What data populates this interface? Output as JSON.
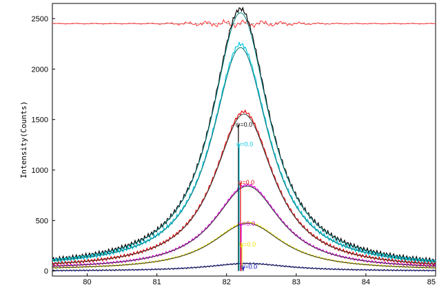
{
  "chart_data": {
    "type": "line",
    "title": "",
    "xlabel": "",
    "ylabel": "Intensity(Counts)",
    "xlim": [
      79.5,
      85
    ],
    "ylim": [
      -50,
      2650
    ],
    "x_ticks": [
      80,
      81,
      82,
      83,
      84,
      85
    ],
    "y_ticks": [
      0,
      500,
      1000,
      1500,
      2000,
      2500
    ],
    "grid": false,
    "residual": {
      "baseline": 2450,
      "color": "#ff3030",
      "dash_color": "#a0a0a0"
    },
    "series": [
      {
        "center": 82.2,
        "peak": 2600,
        "hwhm": 0.5,
        "background": 30,
        "color": "#000000",
        "fit_color": "#007f7f",
        "psi_label": "ψ=0.0",
        "marker_x": 82.17
      },
      {
        "center": 82.2,
        "peak": 2250,
        "hwhm": 0.5,
        "background": 30,
        "color": "#00c8e0",
        "fit_color": "#007070",
        "psi_label": "ψ=0.0",
        "marker_x": 82.18
      },
      {
        "center": 82.25,
        "peak": 1580,
        "hwhm": 0.52,
        "background": 20,
        "color": "#e00000",
        "fit_color": "#303030",
        "psi_label": "ψ=0.0",
        "marker_x": 82.2
      },
      {
        "center": 82.3,
        "peak": 855,
        "hwhm": 0.58,
        "background": 15,
        "color": "#e000e0",
        "fit_color": "#303030",
        "psi_label": "ψ=0.0",
        "marker_x": 82.21
      },
      {
        "center": 82.3,
        "peak": 480,
        "hwhm": 0.62,
        "background": 10,
        "color": "#e8e000",
        "fit_color": "#303030",
        "psi_label": "ψ=0.0",
        "marker_x": 82.22
      },
      {
        "center": 82.3,
        "peak": 75,
        "hwhm": 0.7,
        "background": 0,
        "color": "#0000c0",
        "fit_color": "#303030",
        "psi_label": "ψ=0.0",
        "marker_x": 82.24
      }
    ]
  }
}
